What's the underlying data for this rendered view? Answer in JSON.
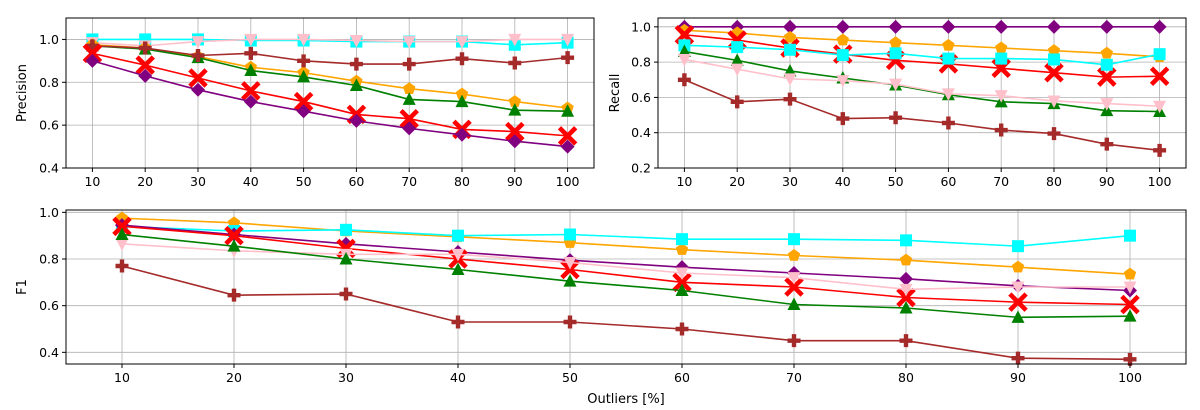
{
  "chart_data": [
    {
      "id": "precision",
      "type": "line",
      "xlabel": "",
      "ylabel": "Precision",
      "x": [
        10,
        20,
        30,
        40,
        50,
        60,
        70,
        80,
        90,
        100
      ],
      "xticks": [
        10,
        20,
        30,
        40,
        50,
        60,
        70,
        80,
        90,
        100
      ],
      "xlim": [
        5,
        105
      ],
      "ylim": [
        0.4,
        1.1
      ],
      "yticks": [
        0.4,
        0.6,
        0.8,
        1.0
      ],
      "ytick_labels": [
        "0.4",
        "0.6",
        "0.8",
        "1.0"
      ],
      "grid": true,
      "series": [
        {
          "name": "cyan",
          "color": "#00ffff",
          "marker": "square",
          "values": [
            1.0,
            1.0,
            1.0,
            0.995,
            0.995,
            0.99,
            0.99,
            0.99,
            0.975,
            0.985
          ]
        },
        {
          "name": "pink",
          "color": "#ffc0cb",
          "marker": "triangle-down",
          "values": [
            0.985,
            0.97,
            0.99,
            1.0,
            1.0,
            0.995,
            0.99,
            0.99,
            1.0,
            1.0
          ]
        },
        {
          "name": "orange",
          "color": "#ffa500",
          "marker": "pentagon",
          "values": [
            0.975,
            0.96,
            0.92,
            0.87,
            0.845,
            0.805,
            0.77,
            0.745,
            0.71,
            0.68
          ]
        },
        {
          "name": "green",
          "color": "#008000",
          "marker": "triangle-up",
          "values": [
            0.97,
            0.955,
            0.915,
            0.855,
            0.825,
            0.785,
            0.72,
            0.71,
            0.67,
            0.665
          ]
        },
        {
          "name": "brown",
          "color": "#a52a2a",
          "marker": "plus",
          "values": [
            0.97,
            0.96,
            0.925,
            0.935,
            0.9,
            0.885,
            0.885,
            0.91,
            0.89,
            0.915
          ]
        },
        {
          "name": "red",
          "color": "#ff0000",
          "marker": "x",
          "values": [
            0.935,
            0.88,
            0.82,
            0.76,
            0.71,
            0.65,
            0.63,
            0.58,
            0.57,
            0.55
          ]
        },
        {
          "name": "purple",
          "color": "#800080",
          "marker": "diamond",
          "values": [
            0.9,
            0.83,
            0.765,
            0.71,
            0.665,
            0.62,
            0.585,
            0.555,
            0.525,
            0.5
          ]
        }
      ]
    },
    {
      "id": "recall",
      "type": "line",
      "xlabel": "",
      "ylabel": "Recall",
      "x": [
        10,
        20,
        30,
        40,
        50,
        60,
        70,
        80,
        90,
        100
      ],
      "xticks": [
        10,
        20,
        30,
        40,
        50,
        60,
        70,
        80,
        90,
        100
      ],
      "xlim": [
        5,
        105
      ],
      "ylim": [
        0.2,
        1.05
      ],
      "yticks": [
        0.2,
        0.4,
        0.6,
        0.8,
        1.0
      ],
      "ytick_labels": [
        "0.2",
        "0.4",
        "0.6",
        "0.8",
        "1.0"
      ],
      "grid": true,
      "series": [
        {
          "name": "purple",
          "color": "#800080",
          "marker": "diamond",
          "values": [
            1.0,
            1.0,
            1.0,
            1.0,
            1.0,
            1.0,
            1.0,
            1.0,
            1.0,
            1.0
          ]
        },
        {
          "name": "orange",
          "color": "#ffa500",
          "marker": "pentagon",
          "values": [
            0.98,
            0.965,
            0.94,
            0.925,
            0.91,
            0.895,
            0.88,
            0.865,
            0.85,
            0.83
          ]
        },
        {
          "name": "red",
          "color": "#ff0000",
          "marker": "x",
          "values": [
            0.955,
            0.925,
            0.88,
            0.845,
            0.81,
            0.79,
            0.765,
            0.74,
            0.715,
            0.72
          ]
        },
        {
          "name": "cyan",
          "color": "#00ffff",
          "marker": "square",
          "values": [
            0.895,
            0.885,
            0.87,
            0.84,
            0.85,
            0.82,
            0.82,
            0.815,
            0.785,
            0.845
          ]
        },
        {
          "name": "green",
          "color": "#008000",
          "marker": "triangle-up",
          "values": [
            0.86,
            0.81,
            0.75,
            0.71,
            0.67,
            0.615,
            0.575,
            0.565,
            0.525,
            0.52
          ]
        },
        {
          "name": "pink",
          "color": "#ffc0cb",
          "marker": "triangle-down",
          "values": [
            0.815,
            0.76,
            0.705,
            0.695,
            0.675,
            0.62,
            0.61,
            0.58,
            0.565,
            0.55
          ]
        },
        {
          "name": "brown",
          "color": "#a52a2a",
          "marker": "plus",
          "values": [
            0.7,
            0.575,
            0.59,
            0.48,
            0.485,
            0.455,
            0.415,
            0.395,
            0.335,
            0.3
          ]
        }
      ]
    },
    {
      "id": "f1",
      "type": "line",
      "xlabel": "Outliers [%]",
      "ylabel": "F1",
      "x": [
        10,
        20,
        30,
        40,
        50,
        60,
        70,
        80,
        90,
        100
      ],
      "xticks": [
        10,
        20,
        30,
        40,
        50,
        60,
        70,
        80,
        90,
        100
      ],
      "xlim": [
        5,
        105
      ],
      "ylim": [
        0.35,
        1.01
      ],
      "yticks": [
        0.4,
        0.6,
        0.8,
        1.0
      ],
      "ytick_labels": [
        "0.4",
        "0.6",
        "0.8",
        "1.0"
      ],
      "grid": true,
      "series": [
        {
          "name": "orange",
          "color": "#ffa500",
          "marker": "pentagon",
          "values": [
            0.975,
            0.955,
            0.92,
            0.895,
            0.87,
            0.84,
            0.815,
            0.795,
            0.765,
            0.735
          ]
        },
        {
          "name": "cyan",
          "color": "#00ffff",
          "marker": "square",
          "values": [
            0.94,
            0.92,
            0.925,
            0.9,
            0.905,
            0.885,
            0.885,
            0.88,
            0.855,
            0.9
          ]
        },
        {
          "name": "purple",
          "color": "#800080",
          "marker": "diamond",
          "values": [
            0.945,
            0.905,
            0.865,
            0.83,
            0.795,
            0.765,
            0.74,
            0.715,
            0.685,
            0.665
          ]
        },
        {
          "name": "red",
          "color": "#ff0000",
          "marker": "x",
          "values": [
            0.94,
            0.9,
            0.845,
            0.8,
            0.755,
            0.7,
            0.68,
            0.635,
            0.615,
            0.605
          ]
        },
        {
          "name": "pink",
          "color": "#ffc0cb",
          "marker": "triangle-down",
          "values": [
            0.865,
            0.835,
            0.82,
            0.82,
            0.785,
            0.74,
            0.72,
            0.67,
            0.68,
            0.68
          ]
        },
        {
          "name": "green",
          "color": "#008000",
          "marker": "triangle-up",
          "values": [
            0.905,
            0.855,
            0.8,
            0.755,
            0.705,
            0.665,
            0.605,
            0.59,
            0.55,
            0.555
          ]
        },
        {
          "name": "brown",
          "color": "#a52a2a",
          "marker": "plus",
          "values": [
            0.77,
            0.645,
            0.65,
            0.53,
            0.53,
            0.5,
            0.45,
            0.45,
            0.375,
            0.37
          ]
        }
      ]
    }
  ]
}
